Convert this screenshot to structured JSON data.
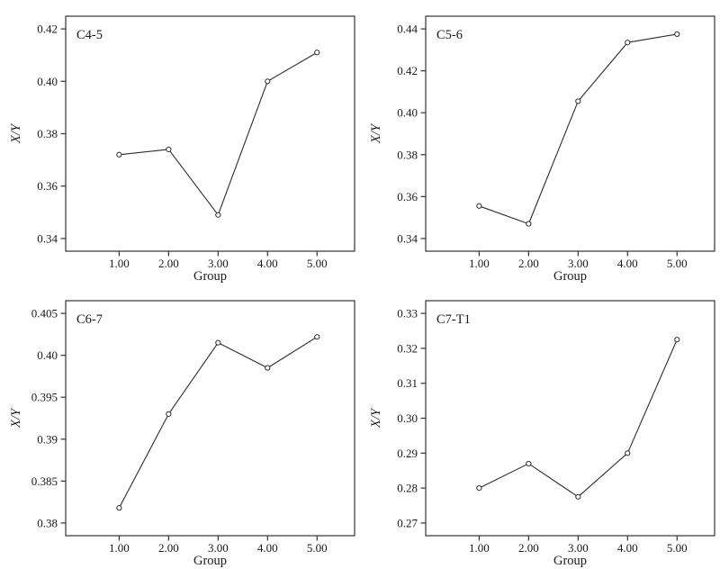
{
  "figure": {
    "layout": "2x2-grid",
    "background": "#ffffff"
  },
  "colors": {
    "line": "#2b2b2b",
    "marker_fill": "#ffffff",
    "axis": "#333333",
    "text": "#1a1a1a",
    "background": "#ffffff"
  },
  "chart_data": [
    {
      "type": "line",
      "title": "C4-5",
      "xlabel": "Group",
      "ylabel": "X/Y",
      "x": [
        1,
        2,
        3,
        4,
        5
      ],
      "xtick_labels": [
        "1.00",
        "2.00",
        "3.00",
        "4.00",
        "5.00"
      ],
      "values": [
        0.372,
        0.374,
        0.349,
        0.4,
        0.411
      ],
      "yticks": [
        0.34,
        0.36,
        0.38,
        0.4,
        0.42
      ],
      "ytick_labels": [
        "0.34",
        "0.36",
        "0.38",
        "0.40",
        "0.42"
      ],
      "ylim": [
        0.34,
        0.42
      ],
      "grid": false,
      "legend": false,
      "marker": "open-circle"
    },
    {
      "type": "line",
      "title": "C5-6",
      "xlabel": "Group",
      "ylabel": "X/Y",
      "x": [
        1,
        2,
        3,
        4,
        5
      ],
      "xtick_labels": [
        "1.00",
        "2.00",
        "3.00",
        "4.00",
        "5.00"
      ],
      "values": [
        0.3555,
        0.347,
        0.4055,
        0.4335,
        0.4375
      ],
      "yticks": [
        0.34,
        0.36,
        0.38,
        0.4,
        0.42,
        0.44
      ],
      "ytick_labels": [
        "0.34",
        "0.36",
        "0.38",
        "0.40",
        "0.42",
        "0.44"
      ],
      "ylim": [
        0.34,
        0.44
      ],
      "grid": false,
      "legend": false,
      "marker": "open-circle"
    },
    {
      "type": "line",
      "title": "C6-7",
      "xlabel": "Group",
      "ylabel": "X/Y",
      "x": [
        1,
        2,
        3,
        4,
        5
      ],
      "xtick_labels": [
        "1.00",
        "2.00",
        "3.00",
        "4.00",
        "5.00"
      ],
      "values": [
        0.3818,
        0.393,
        0.4015,
        0.3985,
        0.4022
      ],
      "yticks": [
        0.38,
        0.385,
        0.39,
        0.395,
        0.4,
        0.405
      ],
      "ytick_labels": [
        "0.38",
        "0.385",
        "0.39",
        "0.395",
        "0.40",
        "0.405"
      ],
      "ylim": [
        0.38,
        0.405
      ],
      "grid": false,
      "legend": false,
      "marker": "open-circle"
    },
    {
      "type": "line",
      "title": "C7-T1",
      "xlabel": "Group",
      "ylabel": "X/Y",
      "x": [
        1,
        2,
        3,
        4,
        5
      ],
      "xtick_labels": [
        "1.00",
        "2.00",
        "3.00",
        "4.00",
        "5.00"
      ],
      "values": [
        0.28,
        0.287,
        0.2775,
        0.29,
        0.3225
      ],
      "yticks": [
        0.27,
        0.28,
        0.29,
        0.3,
        0.31,
        0.32,
        0.33
      ],
      "ytick_labels": [
        "0.27",
        "0.28",
        "0.29",
        "0.30",
        "0.31",
        "0.32",
        "0.33"
      ],
      "ylim": [
        0.27,
        0.33
      ],
      "grid": false,
      "legend": false,
      "marker": "open-circle"
    }
  ]
}
